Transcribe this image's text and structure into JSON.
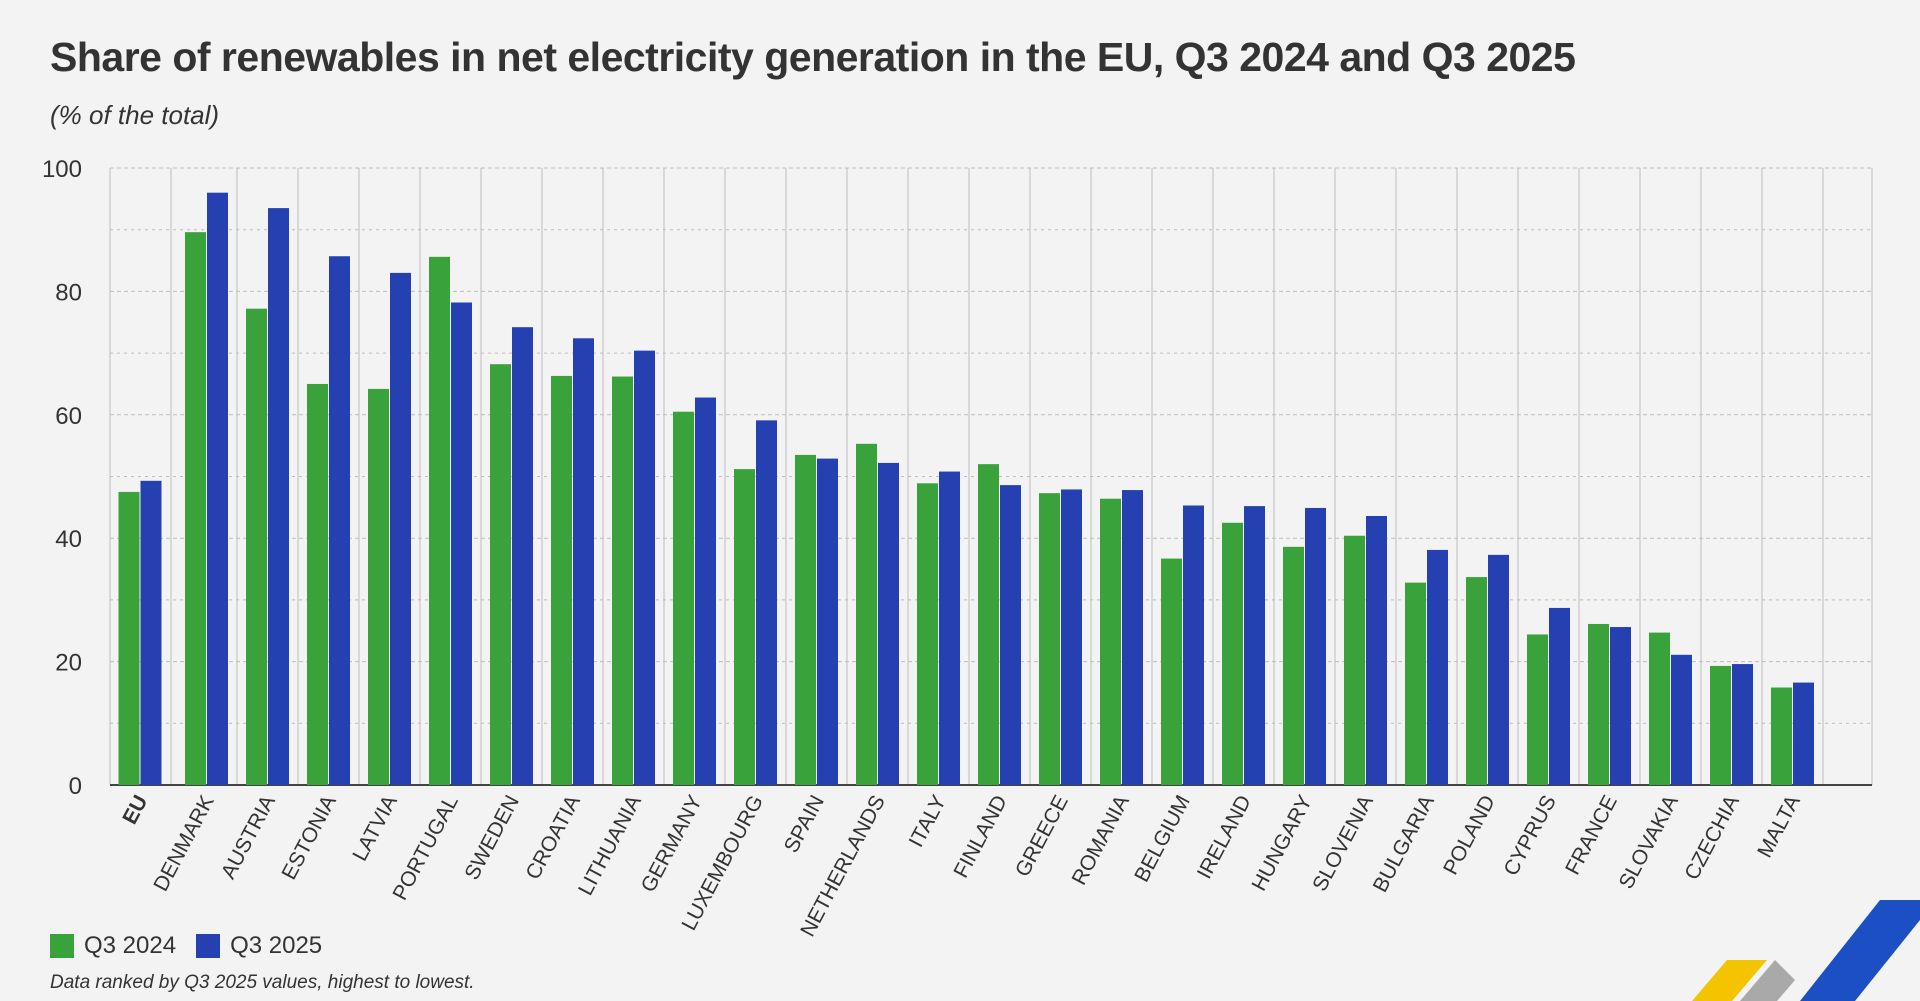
{
  "colors": {
    "series_2024": "#3aa23a",
    "series_2025": "#2540b0",
    "grid": "#bdbdbd",
    "axis": "#444444"
  },
  "chart_data": {
    "type": "bar",
    "title": "Share of renewables in net electricity generation in the EU, Q3 2024 and Q3 2025",
    "subtitle": "(% of the total)",
    "ylim": [
      0,
      100
    ],
    "yticks": [
      0,
      20,
      40,
      60,
      80,
      100
    ],
    "grid": true,
    "legend_position": "bottom-left",
    "categories": [
      "EU",
      "DENMARK",
      "AUSTRIA",
      "ESTONIA",
      "LATVIA",
      "PORTUGAL",
      "SWEDEN",
      "CROATIA",
      "LITHUANIA",
      "GERMANY",
      "LUXEMBOURG",
      "SPAIN",
      "NETHERLANDS",
      "ITALY",
      "FINLAND",
      "GREECE",
      "ROMANIA",
      "BELGIUM",
      "IRELAND",
      "HUNGARY",
      "SLOVENIA",
      "BULGARIA",
      "POLAND",
      "CYPRUS",
      "FRANCE",
      "SLOVAKIA",
      "CZECHIA",
      "MALTA"
    ],
    "series": [
      {
        "name": "Q3 2024",
        "values": [
          47.5,
          89.6,
          77.2,
          65.0,
          64.2,
          85.6,
          68.2,
          66.3,
          66.2,
          60.5,
          51.2,
          53.5,
          55.3,
          48.9,
          52.0,
          47.3,
          46.4,
          36.7,
          42.5,
          38.6,
          40.4,
          32.8,
          33.7,
          24.4,
          26.1,
          24.7,
          19.3,
          15.8
        ]
      },
      {
        "name": "Q3 2025",
        "values": [
          49.3,
          96.0,
          93.5,
          85.7,
          83.0,
          78.2,
          74.2,
          72.4,
          70.4,
          62.8,
          59.1,
          52.9,
          52.2,
          50.8,
          48.6,
          47.9,
          47.8,
          45.3,
          45.2,
          44.9,
          43.6,
          38.1,
          37.3,
          28.7,
          25.6,
          21.1,
          19.6,
          16.6
        ]
      }
    ]
  },
  "legend": {
    "items": [
      "Q3 2024",
      "Q3 2025"
    ]
  },
  "note": "Data ranked by Q3 2025 values, highest to lowest."
}
